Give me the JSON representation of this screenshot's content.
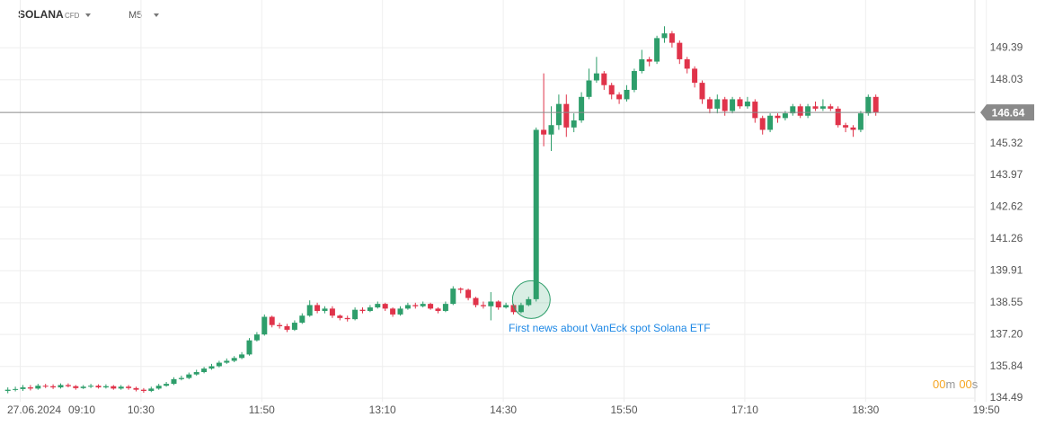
{
  "chart_data": {
    "type": "candlestick",
    "symbol": "SOLANA",
    "instrument_type": "CFD",
    "timeframe": "M5",
    "date": "27.06.2024",
    "x": [
      "09:00",
      "09:05",
      "09:10",
      "09:15",
      "09:20",
      "09:25",
      "09:30",
      "09:35",
      "09:40",
      "09:45",
      "09:50",
      "09:55",
      "10:00",
      "10:05",
      "10:10",
      "10:15",
      "10:20",
      "10:25",
      "10:30",
      "10:35",
      "10:40",
      "10:45",
      "10:50",
      "10:55",
      "11:00",
      "11:05",
      "11:10",
      "11:15",
      "11:20",
      "11:25",
      "11:30",
      "11:35",
      "11:40",
      "11:45",
      "11:50",
      "11:55",
      "12:00",
      "12:05",
      "12:10",
      "12:15",
      "12:20",
      "12:25",
      "12:30",
      "12:35",
      "12:40",
      "12:45",
      "12:50",
      "12:55",
      "13:00",
      "13:05",
      "13:10",
      "13:15",
      "13:20",
      "13:25",
      "13:30",
      "13:35",
      "13:40",
      "13:45",
      "13:50",
      "13:55",
      "14:00",
      "14:05",
      "14:10",
      "14:15",
      "14:20",
      "14:25",
      "14:30",
      "14:35",
      "14:40",
      "14:45",
      "14:50",
      "14:55",
      "15:00",
      "15:05",
      "15:10",
      "15:15",
      "15:20",
      "15:25",
      "15:30",
      "15:35",
      "15:40",
      "15:45",
      "15:50",
      "15:55",
      "16:00",
      "16:05",
      "16:10",
      "16:15",
      "16:20",
      "16:25",
      "16:30",
      "16:35",
      "16:40",
      "16:45",
      "16:50",
      "16:55",
      "17:00",
      "17:05",
      "17:10",
      "17:15",
      "17:20",
      "17:25",
      "17:30",
      "17:35",
      "17:40",
      "17:45",
      "17:50",
      "17:55",
      "18:00",
      "18:05",
      "18:10",
      "18:15",
      "18:20",
      "18:25",
      "18:30",
      "18:35"
    ],
    "open": [
      134.8,
      134.85,
      134.88,
      134.95,
      134.9,
      135.02,
      135.0,
      134.95,
      135.05,
      135.0,
      134.92,
      134.98,
      135.02,
      134.95,
      135.0,
      134.9,
      134.98,
      134.92,
      134.85,
      134.8,
      134.9,
      135.02,
      135.1,
      135.3,
      135.35,
      135.5,
      135.6,
      135.75,
      135.85,
      136.0,
      136.08,
      136.2,
      136.35,
      136.95,
      137.2,
      137.95,
      137.6,
      137.55,
      137.4,
      137.7,
      138.0,
      138.45,
      138.2,
      138.3,
      138.0,
      137.9,
      137.85,
      138.25,
      138.2,
      138.35,
      138.5,
      138.3,
      138.05,
      138.3,
      138.45,
      138.4,
      138.5,
      138.3,
      138.2,
      138.5,
      139.15,
      139.1,
      138.75,
      138.45,
      138.4,
      138.6,
      138.35,
      138.45,
      138.15,
      138.45,
      138.7,
      145.9,
      145.7,
      146.1,
      147.0,
      146.0,
      146.3,
      147.3,
      148.0,
      148.3,
      147.8,
      147.4,
      147.2,
      147.6,
      148.4,
      148.9,
      148.8,
      149.8,
      150.0,
      149.6,
      148.9,
      148.5,
      147.9,
      147.2,
      146.8,
      147.2,
      146.7,
      147.2,
      146.9,
      147.1,
      146.4,
      145.9,
      146.5,
      146.4,
      146.6,
      146.9,
      146.5,
      146.9,
      146.8,
      146.9,
      146.8,
      146.1,
      146.0,
      145.9,
      146.6,
      147.3
    ],
    "high": [
      134.95,
      134.98,
      135.05,
      135.05,
      135.1,
      135.1,
      135.08,
      135.12,
      135.12,
      135.05,
      135.05,
      135.1,
      135.08,
      135.08,
      135.05,
      135.05,
      135.05,
      134.98,
      134.92,
      134.98,
      135.1,
      135.18,
      135.38,
      135.45,
      135.58,
      135.7,
      135.82,
      135.95,
      136.08,
      136.18,
      136.28,
      136.45,
      137.05,
      137.3,
      138.05,
      138.0,
      137.7,
      137.65,
      137.8,
      138.1,
      138.65,
      138.55,
      138.4,
      138.4,
      138.05,
      138.0,
      138.35,
      138.35,
      138.45,
      138.6,
      138.55,
      138.35,
      138.4,
      138.55,
      138.55,
      138.6,
      138.55,
      138.35,
      138.6,
      139.25,
      139.2,
      139.15,
      138.8,
      138.6,
      139.0,
      138.65,
      138.55,
      138.5,
      138.55,
      138.8,
      146.0,
      148.3,
      146.9,
      147.4,
      147.4,
      146.6,
      147.5,
      148.5,
      149.0,
      148.4,
      147.9,
      147.5,
      147.8,
      148.5,
      149.3,
      149.0,
      149.9,
      150.3,
      150.1,
      149.7,
      149.0,
      148.6,
      148.0,
      147.3,
      147.4,
      147.3,
      147.3,
      147.3,
      147.3,
      147.2,
      146.5,
      146.6,
      146.6,
      146.7,
      147.0,
      147.0,
      147.0,
      147.1,
      147.2,
      147.0,
      146.9,
      146.2,
      146.1,
      146.7,
      147.4,
      147.4
    ],
    "low": [
      134.7,
      134.78,
      134.8,
      134.82,
      134.85,
      134.92,
      134.88,
      134.9,
      134.95,
      134.85,
      134.88,
      134.92,
      134.9,
      134.9,
      134.85,
      134.85,
      134.85,
      134.78,
      134.72,
      134.75,
      134.85,
      134.98,
      135.05,
      135.25,
      135.3,
      135.45,
      135.55,
      135.7,
      135.8,
      135.95,
      136.02,
      136.15,
      136.3,
      136.9,
      137.15,
      137.5,
      137.45,
      137.3,
      137.35,
      137.65,
      137.95,
      138.1,
      138.1,
      137.9,
      137.8,
      137.75,
      137.8,
      138.1,
      138.15,
      138.3,
      138.2,
      137.95,
      138.0,
      138.25,
      138.3,
      138.35,
      138.25,
      138.1,
      138.15,
      138.45,
      138.95,
      138.65,
      138.35,
      138.3,
      137.8,
      138.25,
      138.3,
      138.05,
      138.1,
      138.4,
      138.6,
      145.2,
      145.0,
      145.9,
      145.6,
      145.8,
      146.2,
      147.2,
      147.9,
      147.6,
      147.2,
      147.0,
      147.1,
      147.5,
      148.3,
      148.6,
      148.7,
      149.6,
      149.4,
      148.7,
      148.3,
      147.7,
      147.0,
      146.6,
      146.6,
      146.5,
      146.6,
      146.8,
      146.8,
      146.2,
      145.7,
      145.8,
      146.2,
      146.3,
      146.5,
      146.4,
      146.4,
      146.7,
      146.7,
      146.7,
      146.0,
      145.8,
      145.6,
      145.8,
      146.5,
      146.5
    ],
    "close": [
      134.85,
      134.88,
      134.95,
      134.9,
      135.02,
      135.0,
      134.95,
      135.05,
      135.0,
      134.92,
      134.98,
      135.02,
      134.95,
      135.0,
      134.9,
      134.98,
      134.92,
      134.85,
      134.8,
      134.9,
      135.02,
      135.1,
      135.3,
      135.35,
      135.5,
      135.6,
      135.75,
      135.85,
      136.0,
      136.08,
      136.2,
      136.35,
      136.95,
      137.2,
      137.95,
      137.6,
      137.55,
      137.4,
      137.7,
      138.0,
      138.45,
      138.2,
      138.3,
      138.0,
      137.9,
      137.85,
      138.25,
      138.2,
      138.35,
      138.5,
      138.3,
      138.05,
      138.3,
      138.45,
      138.4,
      138.5,
      138.3,
      138.2,
      138.5,
      139.15,
      139.1,
      138.75,
      138.45,
      138.4,
      138.6,
      138.35,
      138.45,
      138.15,
      138.45,
      138.7,
      145.9,
      145.7,
      146.1,
      147.0,
      146.0,
      146.3,
      147.3,
      148.0,
      148.3,
      147.8,
      147.4,
      147.2,
      147.6,
      148.4,
      148.9,
      148.8,
      149.8,
      150.0,
      149.6,
      148.9,
      148.5,
      147.9,
      147.2,
      146.8,
      147.2,
      146.7,
      147.2,
      146.9,
      147.1,
      146.4,
      145.9,
      146.5,
      146.4,
      146.6,
      146.9,
      146.5,
      146.9,
      146.8,
      146.9,
      146.8,
      146.1,
      146.0,
      145.9,
      146.6,
      147.3,
      146.64
    ],
    "up_color": "#2e9e6b",
    "down_color": "#e0334a",
    "ylim": [
      134.34,
      150.77
    ],
    "yticks": [
      134.49,
      135.84,
      {
        "value": 137.2,
        "label": "137.20"
      },
      138.55,
      139.91,
      141.26,
      142.62,
      143.97,
      145.32,
      148.03,
      149.39
    ],
    "xticks": [
      "09:10",
      "10:30",
      "11:50",
      "13:10",
      "14:30",
      "15:50",
      "17:10",
      "18:30",
      "19:50"
    ],
    "grid": true,
    "last_price": 146.64,
    "annotation": {
      "text": "First news about VanEck spot Solana ETF",
      "color": "#1e88e5"
    },
    "timer": {
      "minutes": "00",
      "minutes_unit": "m",
      "seconds": "00",
      "seconds_unit": "s"
    }
  }
}
